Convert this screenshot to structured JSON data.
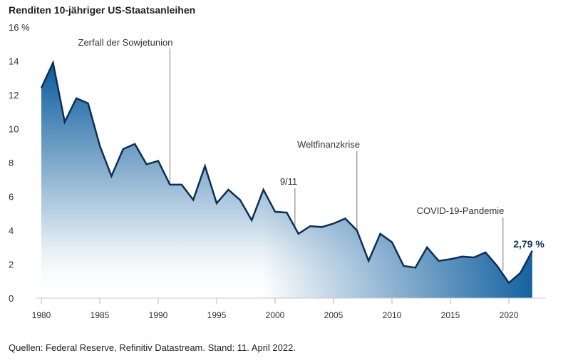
{
  "chart_data": {
    "type": "area",
    "title": "Renditen 10-jähriger US-Staatsanleihen",
    "xlabel": "",
    "ylabel": "",
    "y_unit_label": "16 %",
    "ylim": [
      0,
      16
    ],
    "xlim": [
      1980,
      2022
    ],
    "yticks": [
      "0",
      "2",
      "4",
      "6",
      "8",
      "10",
      "12",
      "14",
      "16 %"
    ],
    "ytick_values": [
      0,
      2,
      4,
      6,
      8,
      10,
      12,
      14,
      16
    ],
    "xticks": [
      1980,
      1985,
      1990,
      1995,
      2000,
      2005,
      2010,
      2015,
      2020
    ],
    "grid": false,
    "x": [
      1980,
      1981,
      1982,
      1983,
      1984,
      1985,
      1986,
      1987,
      1988,
      1989,
      1990,
      1991,
      1992,
      1993,
      1994,
      1995,
      1996,
      1997,
      1998,
      1999,
      2000,
      2001,
      2002,
      2003,
      2004,
      2005,
      2006,
      2007,
      2008,
      2009,
      2010,
      2011,
      2012,
      2013,
      2014,
      2015,
      2016,
      2017,
      2018,
      2019,
      2020,
      2021,
      2022
    ],
    "values": [
      12.4,
      13.9,
      10.4,
      11.8,
      11.5,
      9.0,
      7.2,
      8.8,
      9.1,
      7.9,
      8.1,
      6.7,
      6.7,
      5.8,
      7.8,
      5.6,
      6.4,
      5.8,
      4.6,
      6.4,
      5.1,
      5.05,
      3.8,
      4.25,
      4.2,
      4.4,
      4.7,
      4.0,
      2.2,
      3.8,
      3.3,
      1.9,
      1.8,
      3.0,
      2.2,
      2.3,
      2.45,
      2.4,
      2.7,
      1.9,
      0.9,
      1.5,
      2.79
    ],
    "annotations": [
      {
        "text": "Zerfall der Sowjetunion",
        "x": 1991,
        "y": 6.7
      },
      {
        "text": "9/11",
        "x": 2001.7,
        "y": 4.3
      },
      {
        "text": "Weltfinanzkrise",
        "x": 2007,
        "y": 4.0
      },
      {
        "text": "COVID-19-Pandemie",
        "x": 2019.5,
        "y": 1.7
      }
    ],
    "end_label": "2,79 %",
    "colors": {
      "line": "#0d2f55",
      "fill_dark": "#0a5a9c",
      "fill_light": "#ffffff"
    }
  },
  "source": "Quellen: Federal Reserve, Refinitiv Datastream. Stand: 11. April 2022."
}
